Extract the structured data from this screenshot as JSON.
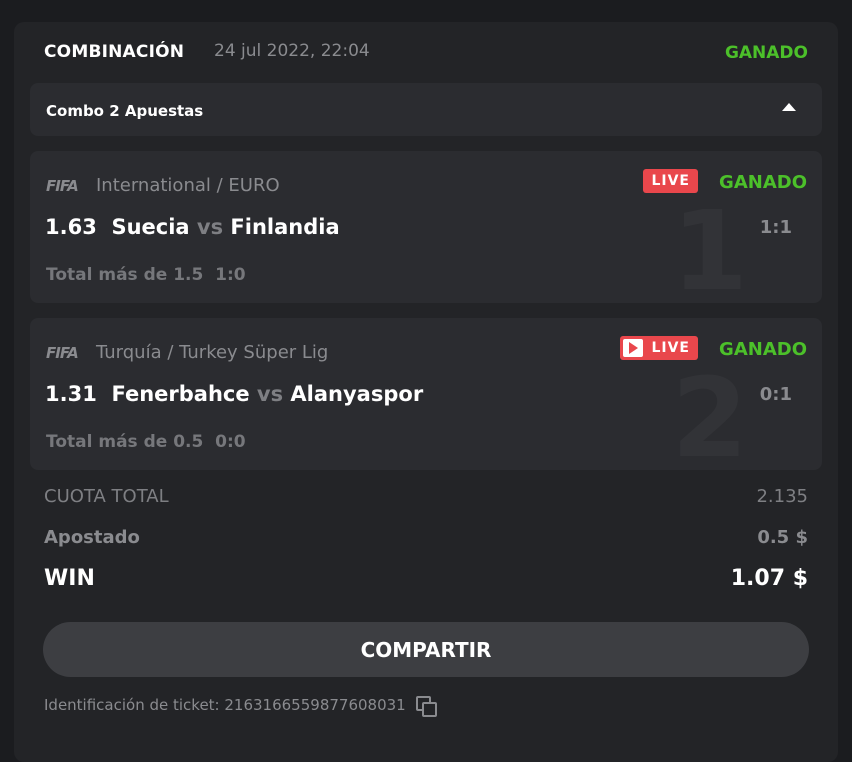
{
  "header": {
    "title": "COMBINACIÓN",
    "date": "24 jul 2022, 22:04",
    "status": "GANADO"
  },
  "combo": {
    "label": "Combo 2 Apuestas",
    "toggle_icon": "caret-up-icon"
  },
  "legs": [
    {
      "index": "1",
      "sport_icon": "fifa-icon",
      "sport_text": "FIFA",
      "league": "International / EURO",
      "live": "LIVE",
      "live_has_play_icon": false,
      "status": "GANADO",
      "odds": "1.63",
      "home": "Suecia",
      "vs": "vs",
      "away": "Finlandia",
      "score": "1:1",
      "market": "Total más de 1.5",
      "market_score": "1:0"
    },
    {
      "index": "2",
      "sport_icon": "fifa-icon",
      "sport_text": "FIFA",
      "league": "Turquía / Turkey Süper Lig",
      "live": "LIVE",
      "live_has_play_icon": true,
      "status": "GANADO",
      "odds": "1.31",
      "home": "Fenerbahce",
      "vs": "vs",
      "away": "Alanyaspor",
      "score": "0:1",
      "market": "Total más de 0.5",
      "market_score": "0:0"
    }
  ],
  "summary": {
    "cuota_label": "CUOTA TOTAL",
    "cuota_value": "2.135",
    "apostado_label": "Apostado",
    "apostado_value": "0.5 $",
    "win_label": "WIN",
    "win_value": "1.07 $"
  },
  "share_label": "COMPARTIR",
  "ticket": {
    "label": "Identificación de ticket: 2163166559877608031",
    "copy_icon": "copy-icon"
  },
  "colors": {
    "win_green": "#4cc02a",
    "live_red": "#e9474c"
  }
}
